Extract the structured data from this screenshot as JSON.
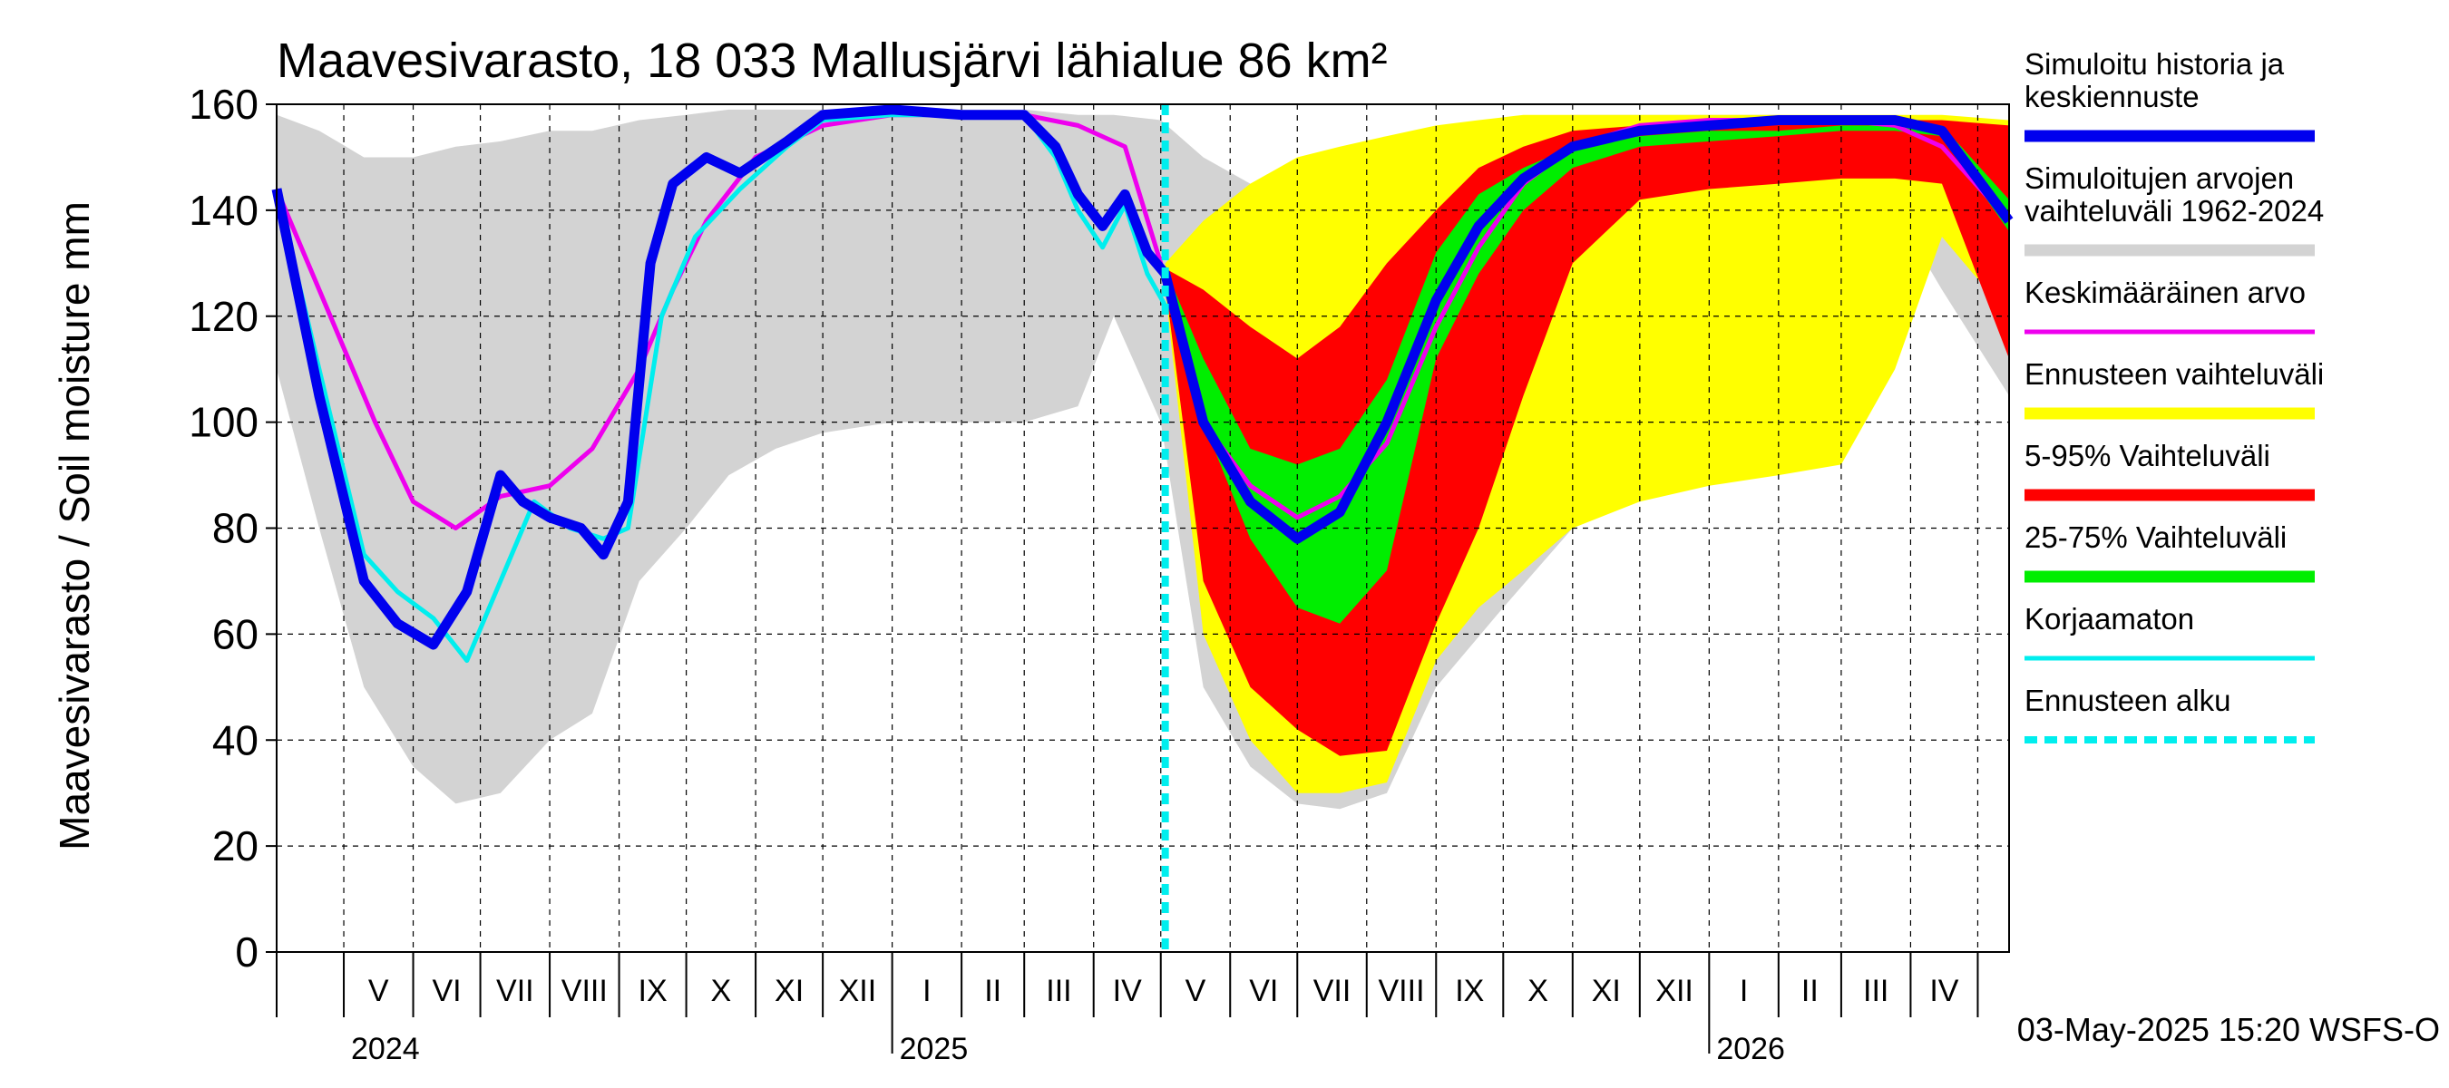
{
  "chart_data": {
    "type": "area",
    "title": "Maavesivarasto, 18 033 Mallusjärvi lähialue 86 km²",
    "ylabel": "Maavesivarasto / Soil moisture   mm",
    "xlabel": "",
    "ylim": [
      0,
      160
    ],
    "yticks": [
      0,
      20,
      40,
      60,
      80,
      100,
      120,
      140,
      160
    ],
    "grid": true,
    "legend_position": "right",
    "x_start": "2024-04-01",
    "x_end": "2026-05-15",
    "forecast_start": "2025-05-03",
    "month_labels": [
      {
        "label": "V",
        "date": "2024-05-01"
      },
      {
        "label": "VI",
        "date": "2024-06-01"
      },
      {
        "label": "VII",
        "date": "2024-07-01"
      },
      {
        "label": "VIII",
        "date": "2024-08-01"
      },
      {
        "label": "IX",
        "date": "2024-09-01"
      },
      {
        "label": "X",
        "date": "2024-10-01"
      },
      {
        "label": "XI",
        "date": "2024-11-01"
      },
      {
        "label": "XII",
        "date": "2024-12-01"
      },
      {
        "label": "I",
        "date": "2025-01-01"
      },
      {
        "label": "II",
        "date": "2025-02-01"
      },
      {
        "label": "III",
        "date": "2025-03-01"
      },
      {
        "label": "IV",
        "date": "2025-04-01"
      },
      {
        "label": "V",
        "date": "2025-05-01"
      },
      {
        "label": "VI",
        "date": "2025-06-01"
      },
      {
        "label": "VII",
        "date": "2025-07-01"
      },
      {
        "label": "VIII",
        "date": "2025-08-01"
      },
      {
        "label": "IX",
        "date": "2025-09-01"
      },
      {
        "label": "X",
        "date": "2025-10-01"
      },
      {
        "label": "XI",
        "date": "2025-11-01"
      },
      {
        "label": "XII",
        "date": "2025-12-01"
      },
      {
        "label": "I",
        "date": "2026-01-01"
      },
      {
        "label": "II",
        "date": "2026-02-01"
      },
      {
        "label": "III",
        "date": "2026-03-01"
      },
      {
        "label": "IV",
        "date": "2026-04-01"
      }
    ],
    "year_labels": [
      {
        "label": "2024",
        "date": "2024-05-01"
      },
      {
        "label": "2025",
        "date": "2025-01-01"
      },
      {
        "label": "2026",
        "date": "2026-01-01"
      }
    ],
    "legend": [
      {
        "label": "Simuloitu historia ja\nkeskiennuste",
        "color": "#0000ee",
        "style": "thick"
      },
      {
        "label": "Simuloitujen arvojen\nvaihteluväli 1962-2024",
        "color": "#d3d3d3",
        "style": "thick"
      },
      {
        "label": "Keskimääräinen arvo",
        "color": "#ee00ee",
        "style": "line"
      },
      {
        "label": "Ennusteen vaihteluväli",
        "color": "#ffff00",
        "style": "thick"
      },
      {
        "label": "5-95% Vaihteluväli",
        "color": "#ff0000",
        "style": "thick"
      },
      {
        "label": "25-75% Vaihteluväli",
        "color": "#00ee00",
        "style": "thick"
      },
      {
        "label": "Korjaamaton",
        "color": "#00eeee",
        "style": "line"
      },
      {
        "label": "Ennusteen alku",
        "color": "#00eeee",
        "style": "dashed"
      }
    ],
    "series": [
      {
        "name": "Simuloitujen arvojen vaihteluväli 1962-2024",
        "kind": "band",
        "color": "#d3d3d3",
        "x": [
          "2024-04-01",
          "2024-04-20",
          "2024-05-10",
          "2024-06-01",
          "2024-06-20",
          "2024-07-10",
          "2024-08-01",
          "2024-08-20",
          "2024-09-10",
          "2024-10-01",
          "2024-10-20",
          "2024-11-10",
          "2024-12-01",
          "2025-01-01",
          "2025-02-01",
          "2025-03-01",
          "2025-03-25",
          "2025-04-10",
          "2025-05-01",
          "2025-05-20",
          "2025-06-10",
          "2025-07-01",
          "2025-07-20",
          "2025-08-10",
          "2025-09-01",
          "2025-10-01",
          "2025-11-01",
          "2025-12-01",
          "2026-01-01",
          "2026-02-01",
          "2026-03-01",
          "2026-03-25",
          "2026-04-15",
          "2026-05-15"
        ],
        "lower": [
          110,
          80,
          50,
          35,
          28,
          30,
          40,
          45,
          70,
          80,
          90,
          95,
          98,
          100,
          100,
          100,
          103,
          120,
          100,
          50,
          35,
          28,
          27,
          30,
          50,
          65,
          80,
          90,
          100,
          105,
          108,
          140,
          125,
          105
        ],
        "upper": [
          158,
          155,
          150,
          150,
          152,
          153,
          155,
          155,
          157,
          158,
          159,
          159,
          159,
          159,
          159,
          159,
          158,
          158,
          157,
          150,
          145,
          145,
          148,
          152,
          155,
          157,
          158,
          158,
          158,
          158,
          158,
          158,
          157,
          156
        ]
      },
      {
        "name": "Ennusteen vaihteluväli",
        "kind": "band",
        "color": "#ffff00",
        "x": [
          "2025-05-03",
          "2025-05-20",
          "2025-06-10",
          "2025-07-01",
          "2025-07-20",
          "2025-08-10",
          "2025-09-01",
          "2025-09-20",
          "2025-10-10",
          "2025-11-01",
          "2025-12-01",
          "2026-01-01",
          "2026-02-01",
          "2026-03-01",
          "2026-03-25",
          "2026-04-15",
          "2026-05-15"
        ],
        "lower": [
          125,
          60,
          40,
          30,
          30,
          32,
          55,
          65,
          72,
          80,
          85,
          88,
          90,
          92,
          110,
          135,
          120
        ],
        "upper": [
          130,
          138,
          145,
          150,
          152,
          154,
          156,
          157,
          158,
          158,
          158,
          158,
          158,
          158,
          158,
          158,
          157
        ]
      },
      {
        "name": "5-95% Vaihteluväli",
        "kind": "band",
        "color": "#ff0000",
        "x": [
          "2025-05-03",
          "2025-05-20",
          "2025-06-10",
          "2025-07-01",
          "2025-07-20",
          "2025-08-10",
          "2025-09-01",
          "2025-09-20",
          "2025-10-10",
          "2025-11-01",
          "2025-12-01",
          "2026-01-01",
          "2026-02-01",
          "2026-03-01",
          "2026-03-25",
          "2026-04-15",
          "2026-05-15"
        ],
        "lower": [
          126,
          70,
          50,
          42,
          37,
          38,
          62,
          80,
          105,
          130,
          142,
          144,
          145,
          146,
          146,
          145,
          112
        ],
        "upper": [
          129,
          125,
          118,
          112,
          118,
          130,
          140,
          148,
          152,
          155,
          156,
          157,
          157,
          157,
          157,
          157,
          156
        ]
      },
      {
        "name": "25-75% Vaihteluväli",
        "kind": "band",
        "color": "#00ee00",
        "x": [
          "2025-05-03",
          "2025-05-20",
          "2025-06-10",
          "2025-07-01",
          "2025-07-20",
          "2025-08-10",
          "2025-09-01",
          "2025-09-20",
          "2025-10-10",
          "2025-11-01",
          "2025-12-01",
          "2026-01-01",
          "2026-02-01",
          "2026-03-01",
          "2026-03-25",
          "2026-04-15",
          "2026-05-15"
        ],
        "lower": [
          127,
          100,
          78,
          65,
          62,
          72,
          112,
          128,
          140,
          148,
          152,
          153,
          154,
          155,
          155,
          154,
          136
        ],
        "upper": [
          129,
          112,
          95,
          92,
          95,
          108,
          132,
          143,
          148,
          152,
          154,
          155,
          155,
          156,
          156,
          156,
          142
        ]
      },
      {
        "name": "Keskimääräinen arvo",
        "kind": "line",
        "color": "#ee00ee",
        "x": [
          "2024-04-01",
          "2024-04-25",
          "2024-05-15",
          "2024-06-01",
          "2024-06-20",
          "2024-07-10",
          "2024-08-01",
          "2024-08-20",
          "2024-09-10",
          "2024-09-25",
          "2024-10-10",
          "2024-11-01",
          "2024-12-01",
          "2025-01-01",
          "2025-02-01",
          "2025-03-01",
          "2025-03-25",
          "2025-04-15",
          "2025-05-01",
          "2025-05-20",
          "2025-06-10",
          "2025-07-01",
          "2025-07-20",
          "2025-08-10",
          "2025-09-01",
          "2025-09-20",
          "2025-10-10",
          "2025-11-01",
          "2025-12-01",
          "2026-01-01",
          "2026-02-01",
          "2026-03-01",
          "2026-03-25",
          "2026-04-15",
          "2026-05-15"
        ],
        "y": [
          144,
          120,
          100,
          85,
          80,
          86,
          88,
          95,
          110,
          125,
          138,
          150,
          156,
          158,
          158,
          158,
          156,
          152,
          130,
          100,
          88,
          82,
          86,
          96,
          118,
          133,
          145,
          152,
          156,
          157,
          157,
          157,
          156,
          152,
          138
        ]
      },
      {
        "name": "Korjaamaton",
        "kind": "line",
        "color": "#00eeee",
        "x": [
          "2024-04-01",
          "2024-04-20",
          "2024-05-10",
          "2024-05-25",
          "2024-06-10",
          "2024-06-25",
          "2024-07-10",
          "2024-07-25",
          "2024-08-10",
          "2024-08-25",
          "2024-09-05",
          "2024-09-20",
          "2024-10-05",
          "2024-10-25",
          "2024-11-15",
          "2024-12-01",
          "2025-01-01",
          "2025-02-01",
          "2025-03-01",
          "2025-03-15",
          "2025-03-25",
          "2025-04-05",
          "2025-04-15",
          "2025-04-25",
          "2025-05-03"
        ],
        "y": [
          144,
          110,
          75,
          68,
          63,
          55,
          70,
          85,
          80,
          78,
          80,
          120,
          135,
          144,
          152,
          157,
          158,
          158,
          158,
          150,
          140,
          133,
          141,
          128,
          122
        ]
      },
      {
        "name": "Simuloitu historia ja keskiennuste",
        "kind": "line",
        "color": "#0000ee",
        "x": [
          "2024-04-01",
          "2024-04-20",
          "2024-05-10",
          "2024-05-25",
          "2024-06-10",
          "2024-06-25",
          "2024-07-10",
          "2024-07-20",
          "2024-08-01",
          "2024-08-15",
          "2024-08-25",
          "2024-09-05",
          "2024-09-15",
          "2024-09-25",
          "2024-10-10",
          "2024-10-25",
          "2024-11-15",
          "2024-12-01",
          "2025-01-01",
          "2025-02-01",
          "2025-03-01",
          "2025-03-15",
          "2025-03-25",
          "2025-04-05",
          "2025-04-15",
          "2025-04-25",
          "2025-05-03",
          "2025-05-20",
          "2025-06-10",
          "2025-07-01",
          "2025-07-20",
          "2025-08-10",
          "2025-09-01",
          "2025-09-20",
          "2025-10-10",
          "2025-11-01",
          "2025-12-01",
          "2026-01-01",
          "2026-02-01",
          "2026-03-01",
          "2026-03-25",
          "2026-04-15",
          "2026-05-15"
        ],
        "y": [
          144,
          105,
          70,
          62,
          58,
          68,
          90,
          85,
          82,
          80,
          75,
          85,
          130,
          145,
          150,
          147,
          153,
          158,
          159,
          158,
          158,
          152,
          143,
          137,
          143,
          132,
          128,
          100,
          85,
          78,
          83,
          100,
          123,
          137,
          146,
          152,
          155,
          156,
          157,
          157,
          157,
          155,
          138
        ]
      }
    ],
    "footer": "03-May-2025 15:20 WSFS-O"
  }
}
